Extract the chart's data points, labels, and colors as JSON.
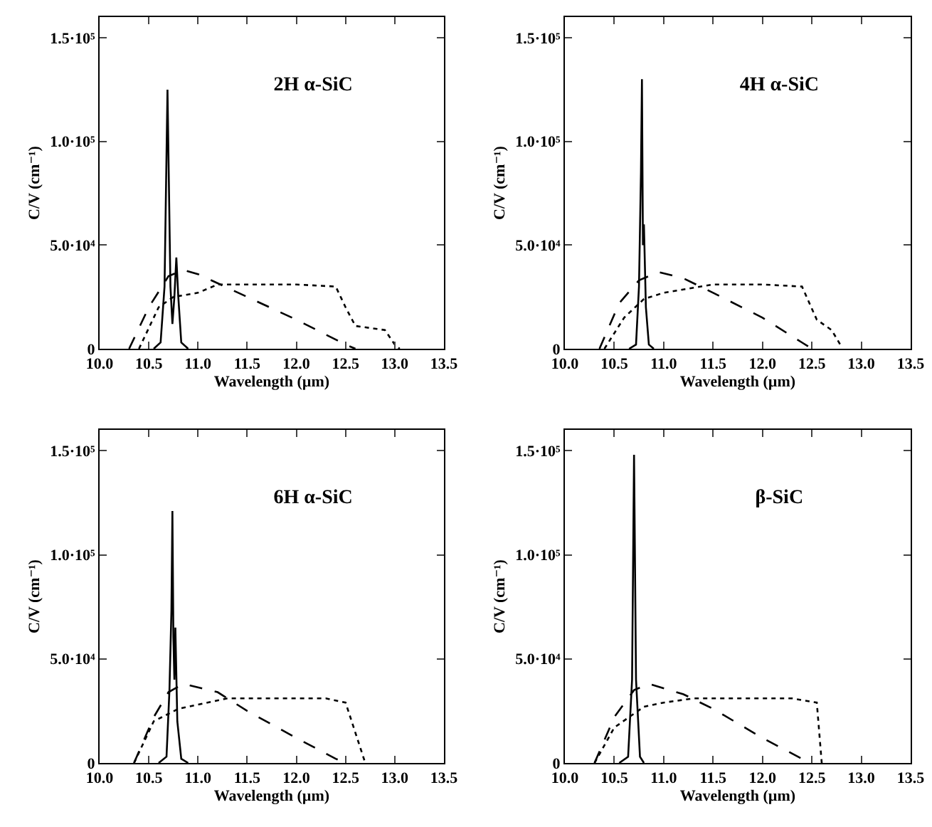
{
  "chart_data": [
    {
      "type": "line",
      "title": "2H α-SiC",
      "xlabel": "Wavelength (µm)",
      "ylabel": "C/V (cm⁻¹)",
      "xlim": [
        10,
        13.5
      ],
      "ylim": [
        0,
        160000
      ],
      "xticks": [
        {
          "value": 10,
          "label": "10.0"
        },
        {
          "value": 10.5,
          "label": "10.5"
        },
        {
          "value": 11,
          "label": "11.0"
        },
        {
          "value": 11.5,
          "label": "11.5"
        },
        {
          "value": 12,
          "label": "12.0"
        },
        {
          "value": 12.5,
          "label": "12.5"
        },
        {
          "value": 13,
          "label": "13.0"
        },
        {
          "value": 13.5,
          "label": "13.5"
        }
      ],
      "yticks": [
        {
          "value": 0,
          "label": "0"
        },
        {
          "value": 50000,
          "label": "5.0·10⁴"
        },
        {
          "value": 100000,
          "label": "1.0·10⁵"
        },
        {
          "value": 150000,
          "label": "1.5·10⁵"
        }
      ],
      "grid": false,
      "series": [
        {
          "color": "#000000",
          "line_style": "solid",
          "x": [
            10.55,
            10.62,
            10.66,
            10.69,
            10.72,
            10.74,
            10.76,
            10.78,
            10.8,
            10.83,
            10.9
          ],
          "values": [
            0,
            3000,
            30000,
            125000,
            30000,
            12000,
            25000,
            44000,
            25000,
            3000,
            0
          ]
        },
        {
          "color": "#000000",
          "line_style": "dashed",
          "x": [
            10.3,
            10.5,
            10.7,
            10.85,
            11.0,
            11.5,
            12.0,
            12.5,
            12.6
          ],
          "values": [
            0,
            20000,
            35000,
            38000,
            36000,
            25000,
            14000,
            2000,
            0
          ]
        },
        {
          "color": "#000000",
          "line_style": "dotted",
          "x": [
            10.4,
            10.6,
            10.75,
            11.0,
            11.2,
            11.5,
            12.0,
            12.4,
            12.5,
            12.6,
            12.9,
            13.0,
            13.05
          ],
          "values": [
            0,
            20000,
            25000,
            27000,
            31000,
            31000,
            31000,
            30000,
            20000,
            11000,
            9000,
            2000,
            0
          ]
        }
      ]
    },
    {
      "type": "line",
      "title": "4H α-SiC",
      "xlabel": "Wavelength (µm)",
      "ylabel": "C/V (cm⁻¹)",
      "xlim": [
        10,
        13.5
      ],
      "ylim": [
        0,
        160000
      ],
      "xticks": [
        {
          "value": 10,
          "label": "10.0"
        },
        {
          "value": 10.5,
          "label": "10.5"
        },
        {
          "value": 11,
          "label": "11.0"
        },
        {
          "value": 11.5,
          "label": "11.5"
        },
        {
          "value": 12,
          "label": "12.0"
        },
        {
          "value": 12.5,
          "label": "12.5"
        },
        {
          "value": 13,
          "label": "13.0"
        },
        {
          "value": 13.5,
          "label": "13.5"
        }
      ],
      "yticks": [
        {
          "value": 0,
          "label": "0"
        },
        {
          "value": 50000,
          "label": "5.0·10⁴"
        },
        {
          "value": 100000,
          "label": "1.0·10⁵"
        },
        {
          "value": 150000,
          "label": "1.5·10⁵"
        }
      ],
      "grid": false,
      "series": [
        {
          "color": "#000000",
          "line_style": "solid",
          "x": [
            10.65,
            10.72,
            10.75,
            10.77,
            10.78,
            10.79,
            10.8,
            10.82,
            10.85,
            10.9
          ],
          "values": [
            0,
            2000,
            30000,
            85000,
            130000,
            50000,
            60000,
            20000,
            2000,
            0
          ]
        },
        {
          "color": "#000000",
          "line_style": "dashed",
          "x": [
            10.35,
            10.55,
            10.75,
            10.95,
            11.2,
            11.5,
            12.0,
            12.4,
            12.5
          ],
          "values": [
            0,
            22000,
            33000,
            37000,
            34000,
            27000,
            15000,
            3000,
            0
          ]
        },
        {
          "color": "#000000",
          "line_style": "dotted",
          "x": [
            10.4,
            10.6,
            10.8,
            11.0,
            11.5,
            12.0,
            12.4,
            12.55,
            12.7,
            12.8
          ],
          "values": [
            0,
            15000,
            24000,
            27000,
            31000,
            31000,
            30000,
            14000,
            9000,
            1000
          ]
        }
      ]
    },
    {
      "type": "line",
      "title": "6H α-SiC",
      "xlabel": "Wavelength (µm)",
      "ylabel": "C/V (cm⁻¹)",
      "xlim": [
        10,
        13.5
      ],
      "ylim": [
        0,
        160000
      ],
      "xticks": [
        {
          "value": 10,
          "label": "10.0"
        },
        {
          "value": 10.5,
          "label": "10.5"
        },
        {
          "value": 11,
          "label": "11.0"
        },
        {
          "value": 11.5,
          "label": "11.5"
        },
        {
          "value": 12,
          "label": "12.0"
        },
        {
          "value": 12.5,
          "label": "12.5"
        },
        {
          "value": 13,
          "label": "13.0"
        },
        {
          "value": 13.5,
          "label": "13.5"
        }
      ],
      "yticks": [
        {
          "value": 0,
          "label": "0"
        },
        {
          "value": 50000,
          "label": "5.0·10⁴"
        },
        {
          "value": 100000,
          "label": "1.0·10⁵"
        },
        {
          "value": 150000,
          "label": "1.5·10⁵"
        }
      ],
      "grid": false,
      "series": [
        {
          "color": "#000000",
          "line_style": "solid",
          "x": [
            10.6,
            10.68,
            10.71,
            10.73,
            10.74,
            10.75,
            10.76,
            10.77,
            10.79,
            10.83,
            10.9
          ],
          "values": [
            0,
            3000,
            35000,
            73000,
            121000,
            60000,
            40000,
            65000,
            20000,
            2000,
            0
          ]
        },
        {
          "color": "#000000",
          "line_style": "dashed",
          "x": [
            10.35,
            10.55,
            10.7,
            10.85,
            11.2,
            11.5,
            12.0,
            12.4,
            12.5
          ],
          "values": [
            0,
            22000,
            34000,
            38000,
            34000,
            25000,
            12000,
            2000,
            0
          ]
        },
        {
          "color": "#000000",
          "line_style": "dotted",
          "x": [
            10.35,
            10.55,
            10.8,
            11.0,
            11.3,
            12.3,
            12.5,
            12.7
          ],
          "values": [
            0,
            20000,
            26000,
            28000,
            31000,
            31000,
            29000,
            0
          ]
        }
      ]
    },
    {
      "type": "line",
      "title": "β-SiC",
      "xlabel": "Wavelength (µm)",
      "ylabel": "C/V (cm⁻¹)",
      "xlim": [
        10,
        13.5
      ],
      "ylim": [
        0,
        160000
      ],
      "xticks": [
        {
          "value": 10,
          "label": "10.0"
        },
        {
          "value": 10.5,
          "label": "10.5"
        },
        {
          "value": 11,
          "label": "11.0"
        },
        {
          "value": 11.5,
          "label": "11.5"
        },
        {
          "value": 12,
          "label": "12.0"
        },
        {
          "value": 12.5,
          "label": "12.5"
        },
        {
          "value": 13,
          "label": "13.0"
        },
        {
          "value": 13.5,
          "label": "13.5"
        }
      ],
      "yticks": [
        {
          "value": 0,
          "label": "0"
        },
        {
          "value": 50000,
          "label": "5.0·10⁴"
        },
        {
          "value": 100000,
          "label": "1.0·10⁵"
        },
        {
          "value": 150000,
          "label": "1.5·10⁵"
        }
      ],
      "grid": false,
      "series": [
        {
          "color": "#000000",
          "line_style": "solid",
          "x": [
            10.55,
            10.64,
            10.68,
            10.7,
            10.72,
            10.76,
            10.8
          ],
          "values": [
            0,
            3000,
            40000,
            148000,
            40000,
            3000,
            0
          ]
        },
        {
          "color": "#000000",
          "line_style": "dashed",
          "x": [
            10.3,
            10.5,
            10.7,
            10.85,
            11.2,
            11.5,
            12.0,
            12.4,
            12.5
          ],
          "values": [
            0,
            22000,
            35000,
            38000,
            33000,
            26000,
            12000,
            2000,
            0
          ]
        },
        {
          "color": "#000000",
          "line_style": "dotted",
          "x": [
            10.3,
            10.5,
            10.8,
            11.0,
            11.3,
            12.3,
            12.55,
            12.6
          ],
          "values": [
            0,
            17000,
            27000,
            29000,
            31000,
            31000,
            29000,
            0
          ]
        }
      ]
    }
  ]
}
